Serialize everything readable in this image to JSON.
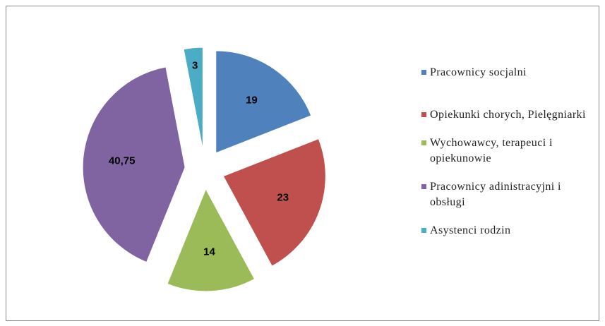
{
  "chart_data": {
    "type": "pie",
    "categories": [
      "Pracownicy socjalni",
      "Opiekunki chorych, Pielęgniarki",
      "Wychowawcy, terapeuci i opiekunowie",
      "Pracownicy adinistracyjni i obsługi",
      "Asystenci rodzin"
    ],
    "values": [
      19,
      23,
      14,
      40.75,
      3
    ],
    "value_labels": [
      "19",
      "23",
      "14",
      "40,75",
      "3"
    ],
    "colors": [
      "#4f81bd",
      "#c0504d",
      "#9bbb59",
      "#8064a2",
      "#4bacc6"
    ],
    "legend": "right"
  }
}
